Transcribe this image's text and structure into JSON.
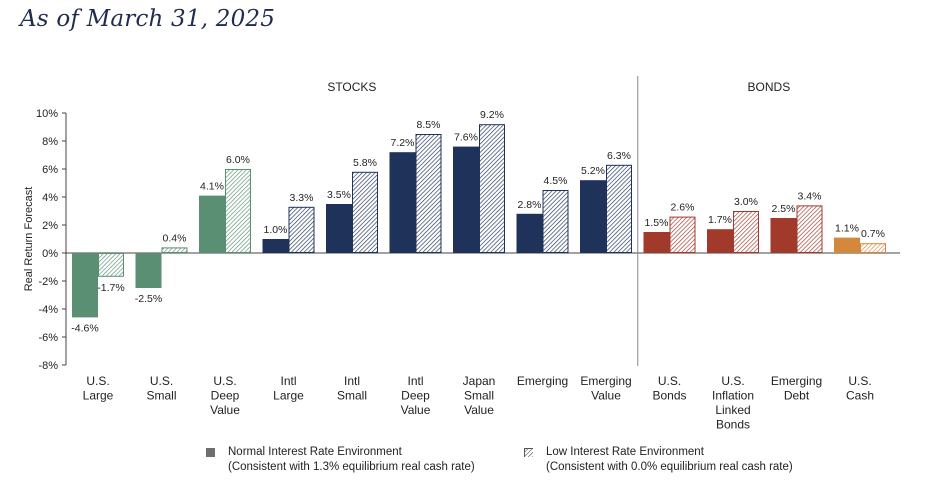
{
  "title": "As of March 31, 2025",
  "legend": {
    "normal_line1": "Normal Interest Rate Environment",
    "normal_line2": "(Consistent with 1.3% equilibrium real cash rate)",
    "low_line1": "Low Interest Rate Environment",
    "low_line2": "(Consistent with 0.0% equilibrium real cash rate)"
  },
  "chart_data": {
    "type": "bar",
    "ylabel": "Real Return Forecast",
    "ylim": [
      -8,
      10
    ],
    "yticks": [
      "10%",
      "8%",
      "6%",
      "4%",
      "2%",
      "0%",
      "-2%",
      "-4%",
      "-6%",
      "-8%"
    ],
    "sections": [
      "STOCKS",
      "BONDS"
    ],
    "categories": [
      {
        "label": [
          "U.S.",
          "Large"
        ],
        "section": "STOCKS",
        "normal": -4.6,
        "low": -1.7,
        "normal_label": "-4.6%",
        "low_label": "-1.7%",
        "color": "#5a8f73"
      },
      {
        "label": [
          "U.S.",
          "Small"
        ],
        "section": "STOCKS",
        "normal": -2.5,
        "low": 0.4,
        "normal_label": "-2.5%",
        "low_label": "0.4%",
        "color": "#5a8f73"
      },
      {
        "label": [
          "U.S.",
          "Deep",
          "Value"
        ],
        "section": "STOCKS",
        "normal": 4.1,
        "low": 6.0,
        "normal_label": "4.1%",
        "low_label": "6.0%",
        "color": "#5a8f73"
      },
      {
        "label": [
          "Intl",
          "Large"
        ],
        "section": "STOCKS",
        "normal": 1.0,
        "low": 3.3,
        "normal_label": "1.0%",
        "low_label": "3.3%",
        "color": "#1f3259"
      },
      {
        "label": [
          "Intl",
          "Small"
        ],
        "section": "STOCKS",
        "normal": 3.5,
        "low": 5.8,
        "normal_label": "3.5%",
        "low_label": "5.8%",
        "color": "#1f3259"
      },
      {
        "label": [
          "Intl",
          "Deep",
          "Value"
        ],
        "section": "STOCKS",
        "normal": 7.2,
        "low": 8.5,
        "normal_label": "7.2%",
        "low_label": "8.5%",
        "color": "#1f3259"
      },
      {
        "label": [
          "Japan",
          "Small",
          "Value"
        ],
        "section": "STOCKS",
        "normal": 7.6,
        "low": 9.2,
        "normal_label": "7.6%",
        "low_label": "9.2%",
        "color": "#1f3259"
      },
      {
        "label": [
          "Emerging"
        ],
        "section": "STOCKS",
        "normal": 2.8,
        "low": 4.5,
        "normal_label": "2.8%",
        "low_label": "4.5%",
        "color": "#1f3259"
      },
      {
        "label": [
          "Emerging",
          "Value"
        ],
        "section": "STOCKS",
        "normal": 5.2,
        "low": 6.3,
        "normal_label": "5.2%",
        "low_label": "6.3%",
        "color": "#1f3259"
      },
      {
        "label": [
          "U.S.",
          "Bonds"
        ],
        "section": "BONDS",
        "normal": 1.5,
        "low": 2.6,
        "normal_label": "1.5%",
        "low_label": "2.6%",
        "color": "#a13a2b"
      },
      {
        "label": [
          "U.S.",
          "Inflation",
          "Linked",
          "Bonds"
        ],
        "section": "BONDS",
        "normal": 1.7,
        "low": 3.0,
        "normal_label": "1.7%",
        "low_label": "3.0%",
        "color": "#a13a2b"
      },
      {
        "label": [
          "Emerging",
          "Debt"
        ],
        "section": "BONDS",
        "normal": 2.5,
        "low": 3.4,
        "normal_label": "2.5%",
        "low_label": "3.4%",
        "color": "#a13a2b"
      },
      {
        "label": [
          "U.S.",
          "Cash"
        ],
        "section": "BONDS",
        "normal": 1.1,
        "low": 0.7,
        "normal_label": "1.1%",
        "low_label": "0.7%",
        "color": "#d4883e"
      }
    ],
    "series": [
      {
        "name": "Normal Interest Rate Environment",
        "fill": "solid"
      },
      {
        "name": "Low Interest Rate Environment",
        "fill": "hatched"
      }
    ],
    "grid": false,
    "legend_position": "bottom"
  }
}
